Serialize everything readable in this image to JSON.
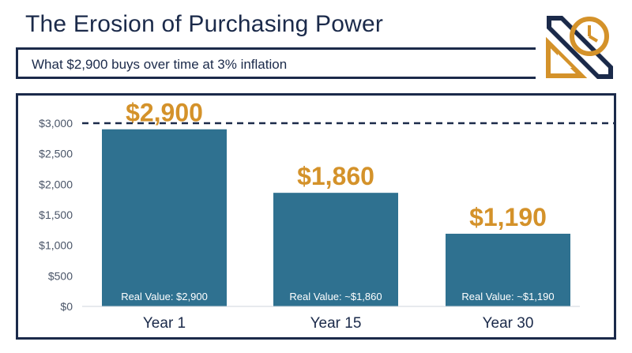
{
  "header": {
    "title": "The Erosion of Purchasing Power",
    "subtitle": "What $2,900 buys over time at 3% inflation"
  },
  "logo": {
    "icon": "clock-arrows-logo-icon",
    "colors": {
      "navy": "#1b2a4a",
      "gold": "#d4922a"
    }
  },
  "chart_data": {
    "type": "bar",
    "categories": [
      "Year 1",
      "Year 15",
      "Year 30"
    ],
    "values": [
      2900,
      1860,
      1190
    ],
    "value_labels": [
      "$2,900",
      "$1,860",
      "$1,190"
    ],
    "bar_labels": [
      "Real Value: $2,900",
      "Real Value: ~$1,860",
      "Real Value: ~$1,190"
    ],
    "ylim": [
      0,
      3000
    ],
    "yticks": [
      0,
      500,
      1000,
      1500,
      2000,
      2500,
      3000
    ],
    "ytick_labels": [
      "$0",
      "$500",
      "$1,000",
      "$1,500",
      "$2,000",
      "$2,500",
      "$3,000"
    ],
    "reference_line": {
      "value": 3000,
      "style": "dashed"
    },
    "grid": false,
    "colors": {
      "bar": "#2f7190",
      "value_label": "#d4922a",
      "axis_text": "#4a5568",
      "category_text": "#1b2a4a",
      "reference": "#1b2a4a"
    }
  }
}
